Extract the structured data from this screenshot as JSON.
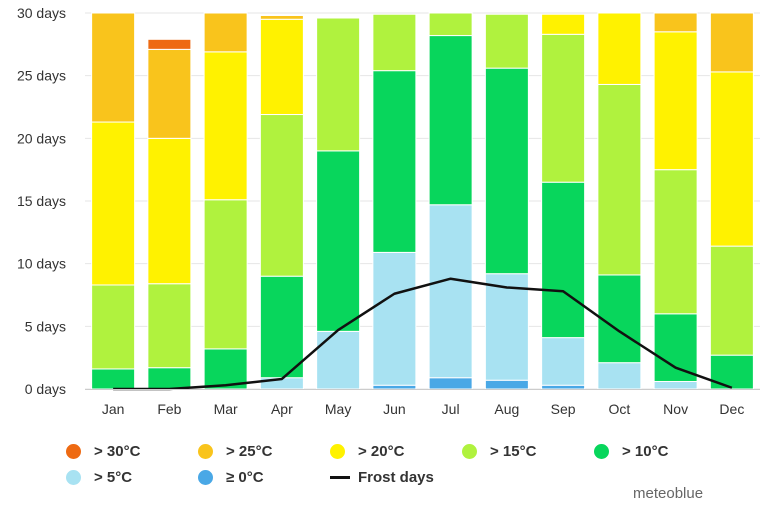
{
  "chart_data": {
    "type": "bar",
    "stacked": true,
    "title": "",
    "xlabel": "",
    "ylabel": "",
    "ylim": [
      0,
      30
    ],
    "y_ticks": [
      "0 days",
      "5 days",
      "10 days",
      "15 days",
      "20 days",
      "25 days",
      "30 days"
    ],
    "categories": [
      "Jan",
      "Feb",
      "Mar",
      "Apr",
      "May",
      "Jun",
      "Jul",
      "Aug",
      "Sep",
      "Oct",
      "Nov",
      "Dec"
    ],
    "series": [
      {
        "name": "≥ 0°C",
        "color": "#4aa8e6",
        "values": [
          0,
          0,
          0,
          0,
          0,
          0.3,
          0.9,
          0.7,
          0.3,
          0,
          0,
          0
        ]
      },
      {
        "name": "> 5°C",
        "color": "#a8e2f2",
        "values": [
          0,
          0,
          0,
          0.9,
          4.6,
          10.6,
          13.8,
          8.5,
          3.8,
          2.1,
          0.6,
          0
        ]
      },
      {
        "name": "> 10°C",
        "color": "#08d65c",
        "values": [
          1.6,
          1.7,
          3.2,
          8.1,
          14.4,
          14.5,
          13.5,
          16.4,
          12.4,
          7.0,
          5.4,
          2.7
        ]
      },
      {
        "name": "> 15°C",
        "color": "#b0f23e",
        "values": [
          6.7,
          6.7,
          11.9,
          12.9,
          10.6,
          4.5,
          1.8,
          4.3,
          11.8,
          15.2,
          11.5,
          8.7
        ]
      },
      {
        "name": "> 20°C",
        "color": "#fff200",
        "values": [
          13.0,
          11.6,
          11.8,
          7.6,
          0,
          0,
          0,
          0,
          1.6,
          5.7,
          11.0,
          13.9
        ]
      },
      {
        "name": "> 25°C",
        "color": "#f9c41c",
        "values": [
          8.7,
          7.1,
          3.1,
          0.3,
          0,
          0,
          0,
          0,
          0,
          0,
          1.5,
          4.7
        ]
      },
      {
        "name": "> 30°C",
        "color": "#ee6a12",
        "values": [
          0,
          0.8,
          0,
          0,
          0,
          0,
          0,
          0,
          0,
          0,
          0,
          0
        ]
      }
    ],
    "line_series": {
      "name": "Frost days",
      "color": "#111111",
      "values": [
        0,
        0,
        0.3,
        0.8,
        4.7,
        7.6,
        8.8,
        8.1,
        7.8,
        4.6,
        1.7,
        0.1
      ]
    },
    "legend": {
      "rows": [
        [
          {
            "label": "> 30°C",
            "color": "#ee6a12",
            "kind": "dot"
          },
          {
            "label": "> 25°C",
            "color": "#f9c41c",
            "kind": "dot"
          },
          {
            "label": "> 20°C",
            "color": "#fff200",
            "kind": "dot"
          },
          {
            "label": "> 15°C",
            "color": "#b0f23e",
            "kind": "dot"
          },
          {
            "label": "> 10°C",
            "color": "#08d65c",
            "kind": "dot"
          }
        ],
        [
          {
            "label": "> 5°C",
            "color": "#a8e2f2",
            "kind": "dot"
          },
          {
            "label": "≥ 0°C",
            "color": "#4aa8e6",
            "kind": "dot"
          },
          {
            "label": "Frost days",
            "color": "#111111",
            "kind": "line"
          }
        ]
      ]
    }
  },
  "credit": "meteoblue"
}
